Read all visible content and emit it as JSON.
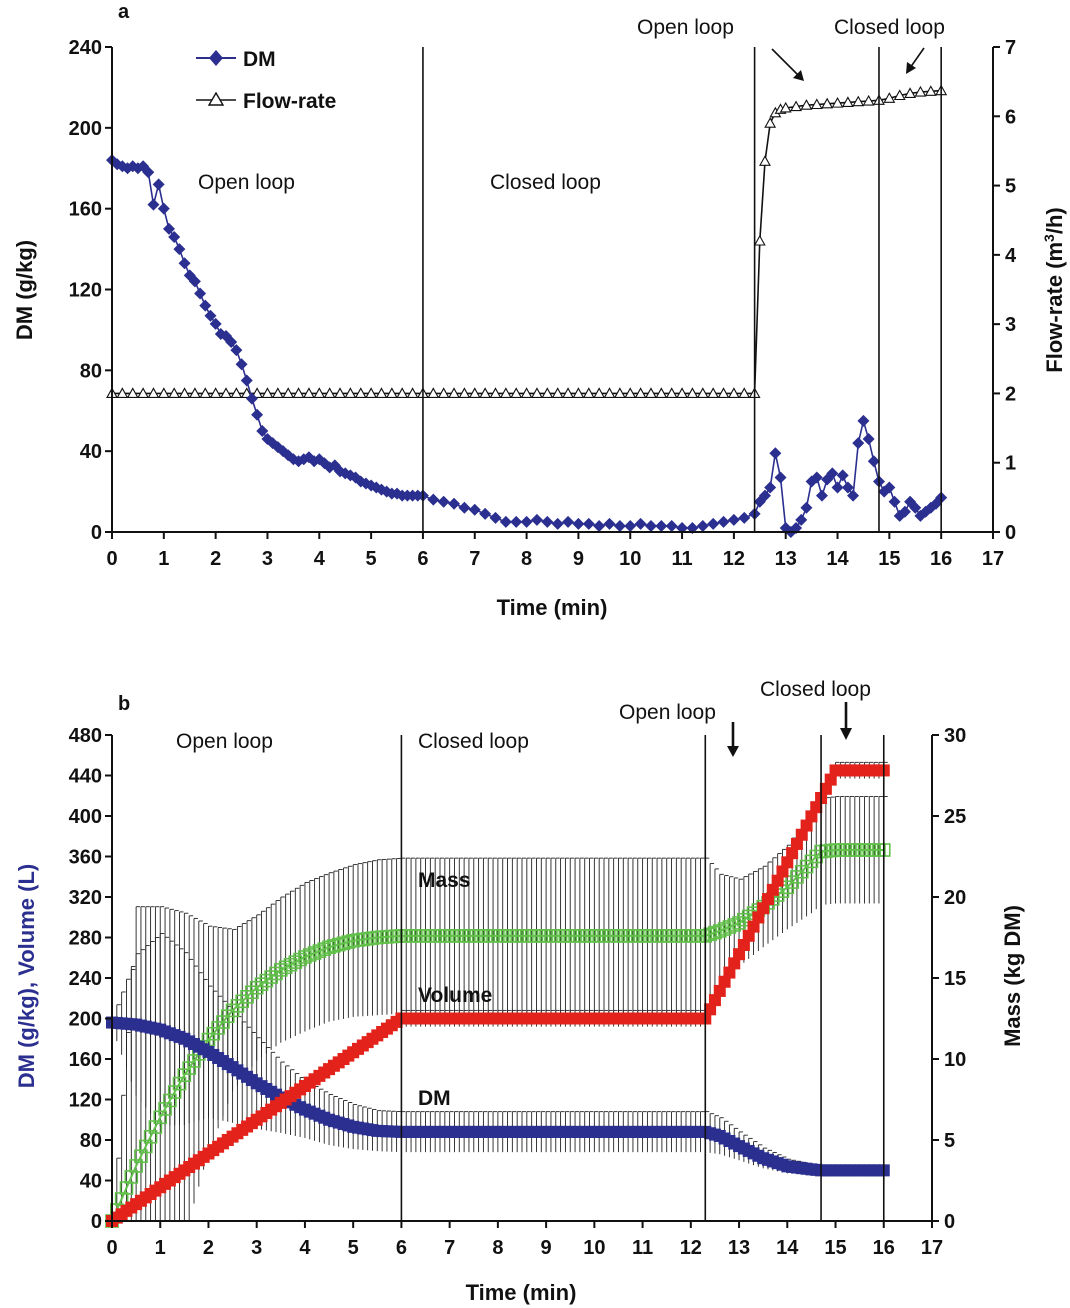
{
  "chart_data": [
    {
      "type": "line",
      "panel": "a",
      "xlabel": "Time (min)",
      "ylabel": "DM (g/kg)",
      "y2label_main": "Flow-rate (m",
      "y2label_sup": "3",
      "y2label_tail": "/h)",
      "xlim": [
        0,
        17
      ],
      "ylim": [
        0,
        240
      ],
      "y2lim": [
        0,
        7
      ],
      "xticks": [
        "0",
        "1",
        "2",
        "3",
        "4",
        "5",
        "6",
        "7",
        "8",
        "9",
        "10",
        "11",
        "12",
        "13",
        "14",
        "15",
        "16",
        "17"
      ],
      "yticks": [
        "0",
        "40",
        "80",
        "120",
        "160",
        "200",
        "240"
      ],
      "y2ticks": [
        "0",
        "1",
        "2",
        "3",
        "4",
        "5",
        "6",
        "7"
      ],
      "legend_position": "top-left",
      "vlines": [
        6.0,
        12.4,
        14.8,
        16.0
      ],
      "annotations": [
        {
          "text": "Open loop",
          "x": 2.8,
          "y": 177
        },
        {
          "text": "Closed loop",
          "x": 8.6,
          "y": 177
        },
        {
          "text": "Open loop",
          "x": 11.5,
          "y": 243
        },
        {
          "text": "Closed loop",
          "x": 15.1,
          "y": 243
        }
      ],
      "series": [
        {
          "name": "DM",
          "axis": "left",
          "color": "#2b2f8f",
          "marker": "diamond",
          "x": [
            0,
            0.1,
            0.2,
            0.3,
            0.4,
            0.5,
            0.6,
            0.7,
            0.8,
            0.9,
            1.0,
            1.1,
            1.2,
            1.3,
            1.4,
            1.5,
            1.6,
            1.7,
            1.8,
            1.9,
            2.0,
            2.1,
            2.2,
            2.3,
            2.4,
            2.5,
            2.6,
            2.7,
            2.8,
            2.9,
            3.0,
            3.1,
            3.2,
            3.3,
            3.4,
            3.5,
            3.6,
            3.7,
            3.8,
            3.9,
            4.0,
            4.1,
            4.2,
            4.3,
            4.4,
            4.5,
            4.6,
            4.7,
            4.8,
            4.9,
            5.0,
            5.1,
            5.2,
            5.3,
            5.4,
            5.5,
            5.6,
            5.7,
            5.8,
            5.9,
            6.0,
            6.2,
            6.4,
            6.6,
            6.8,
            7.0,
            7.2,
            7.4,
            7.6,
            7.8,
            8.0,
            8.2,
            8.4,
            8.6,
            8.8,
            9.0,
            9.2,
            9.4,
            9.6,
            9.8,
            10.0,
            10.2,
            10.4,
            10.6,
            10.8,
            11.0,
            11.2,
            11.4,
            11.6,
            11.8,
            12.0,
            12.2,
            12.4,
            12.5,
            12.6,
            12.7,
            12.8,
            12.9,
            13.0,
            13.1,
            13.2,
            13.3,
            13.4,
            13.5,
            13.6,
            13.7,
            13.8,
            13.9,
            14.0,
            14.1,
            14.2,
            14.3,
            14.4,
            14.5,
            14.6,
            14.7,
            14.8,
            14.9,
            15.0,
            15.1,
            15.2,
            15.3,
            15.4,
            15.5,
            15.6,
            15.7,
            15.8,
            15.9,
            16.0
          ],
          "y": [
            184,
            182,
            181,
            180,
            181,
            180,
            181,
            178,
            162,
            172,
            160,
            150,
            146,
            140,
            133,
            127,
            124,
            118,
            112,
            107,
            103,
            98,
            97,
            94,
            90,
            83,
            75,
            66,
            58,
            50,
            46,
            44,
            42,
            40,
            38,
            36,
            35,
            36,
            37,
            35,
            36,
            34,
            32,
            33,
            30,
            29,
            28,
            27,
            25,
            24,
            23,
            22,
            21,
            20,
            19,
            19,
            18,
            18,
            18,
            18,
            18,
            16,
            15,
            14,
            12,
            11,
            9,
            7,
            5,
            5,
            5,
            6,
            5,
            4,
            5,
            4,
            4,
            3,
            4,
            3,
            3,
            4,
            3,
            3,
            3,
            2,
            2,
            3,
            4,
            5,
            6,
            7,
            9,
            15,
            18,
            22,
            39,
            27,
            2,
            0,
            2,
            6,
            12,
            25,
            27,
            18,
            26,
            29,
            22,
            28,
            22,
            18,
            44,
            55,
            46,
            35,
            25,
            20,
            22,
            15,
            8,
            10,
            15,
            12,
            8,
            10,
            12,
            14,
            17
          ]
        },
        {
          "name": "Flow-rate",
          "axis": "right",
          "color": "#111111",
          "marker": "triangle-open",
          "x": [
            0,
            0.2,
            0.4,
            0.6,
            0.8,
            1.0,
            1.2,
            1.4,
            1.6,
            1.8,
            2.0,
            2.2,
            2.4,
            2.6,
            2.8,
            3.0,
            3.2,
            3.4,
            3.6,
            3.8,
            4.0,
            4.2,
            4.4,
            4.6,
            4.8,
            5.0,
            5.2,
            5.4,
            5.6,
            5.8,
            6.0,
            6.2,
            6.4,
            6.6,
            6.8,
            7.0,
            7.2,
            7.4,
            7.6,
            7.8,
            8.0,
            8.2,
            8.4,
            8.6,
            8.8,
            9.0,
            9.2,
            9.4,
            9.6,
            9.8,
            10.0,
            10.2,
            10.4,
            10.6,
            10.8,
            11.0,
            11.2,
            11.4,
            11.6,
            11.8,
            12.0,
            12.2,
            12.4,
            12.5,
            12.6,
            12.7,
            12.8,
            12.9,
            13.0,
            13.2,
            13.4,
            13.6,
            13.8,
            14.0,
            14.2,
            14.4,
            14.6,
            14.8,
            15.0,
            15.2,
            15.4,
            15.6,
            15.8,
            16.0
          ],
          "y": [
            2.0,
            2.0,
            2.0,
            2.0,
            2.0,
            2.0,
            2.0,
            2.0,
            2.0,
            2.0,
            2.0,
            2.0,
            2.0,
            2.0,
            2.0,
            2.0,
            2.0,
            2.0,
            2.0,
            2.0,
            2.0,
            2.0,
            2.0,
            2.0,
            2.0,
            2.0,
            2.0,
            2.0,
            2.0,
            2.0,
            2.0,
            2.0,
            2.0,
            2.0,
            2.0,
            2.0,
            2.0,
            2.0,
            2.0,
            2.0,
            2.0,
            2.0,
            2.0,
            2.0,
            2.0,
            2.0,
            2.0,
            2.0,
            2.0,
            2.0,
            2.0,
            2.0,
            2.0,
            2.0,
            2.0,
            2.0,
            2.0,
            2.0,
            2.0,
            2.0,
            2.0,
            2.0,
            2.0,
            4.2,
            5.35,
            5.9,
            6.05,
            6.1,
            6.12,
            6.14,
            6.16,
            6.17,
            6.18,
            6.19,
            6.2,
            6.21,
            6.22,
            6.23,
            6.26,
            6.3,
            6.33,
            6.35,
            6.36,
            6.37
          ]
        }
      ]
    },
    {
      "type": "line",
      "panel": "b",
      "xlabel": "Time (min)",
      "ylabel": "DM (g/kg), Volume (L)",
      "y2label": "Mass (kg DM)",
      "xlim": [
        0,
        17
      ],
      "ylim": [
        0,
        480
      ],
      "y2lim": [
        0,
        30
      ],
      "xticks": [
        "0",
        "1",
        "2",
        "3",
        "4",
        "5",
        "6",
        "7",
        "8",
        "9",
        "10",
        "11",
        "12",
        "13",
        "14",
        "15",
        "16",
        "17"
      ],
      "yticks": [
        "0",
        "40",
        "80",
        "120",
        "160",
        "200",
        "240",
        "280",
        "320",
        "360",
        "400",
        "440",
        "480"
      ],
      "y2ticks": [
        "0",
        "5",
        "10",
        "15",
        "20",
        "25",
        "30"
      ],
      "vlines": [
        6.0,
        12.3,
        14.7,
        16.0
      ],
      "annotations": [
        {
          "text": "Open loop",
          "x": 2.5,
          "y": 472
        },
        {
          "text": "Closed loop",
          "x": 7.7,
          "y": 472
        },
        {
          "text": "Open loop",
          "x": 11.8,
          "y": 497
        },
        {
          "text": "Closed loop",
          "x": 14.6,
          "y": 523
        }
      ],
      "series": [
        {
          "name": "DM",
          "axis": "left",
          "color": "#2b2f8f",
          "x": [
            0,
            0.5,
            1.0,
            1.5,
            2.0,
            2.5,
            3.0,
            3.5,
            4.0,
            4.5,
            5.0,
            5.5,
            6.0,
            7.0,
            8.0,
            9.0,
            10.0,
            11.0,
            12.0,
            12.3,
            12.6,
            13.0,
            13.5,
            14.0,
            14.5,
            14.7,
            15.0,
            15.5,
            16.0
          ],
          "y": [
            196,
            194,
            189,
            180,
            167,
            152,
            136,
            122,
            110,
            100,
            93,
            89,
            88,
            88,
            88,
            88,
            88,
            88,
            88,
            88,
            84,
            74,
            62,
            54,
            51,
            50,
            50,
            50,
            50
          ],
          "err": [
            5,
            70,
            95,
            85,
            65,
            55,
            45,
            35,
            28,
            25,
            22,
            20,
            20,
            20,
            20,
            20,
            20,
            20,
            20,
            20,
            18,
            14,
            10,
            7,
            5,
            5,
            5,
            5,
            5
          ]
        },
        {
          "name": "Volume",
          "axis": "left",
          "color": "#e3231b",
          "x": [
            0,
            6.0,
            12.3,
            15.0,
            16.0
          ],
          "y": [
            0,
            200,
            200,
            445,
            445
          ],
          "err": [
            0,
            8,
            8,
            8,
            8
          ]
        },
        {
          "name": "Mass",
          "axis": "right",
          "color": "#61c04a",
          "marker": "square-open",
          "x": [
            0,
            0.5,
            1.0,
            1.5,
            2.0,
            2.5,
            3.0,
            3.5,
            4.0,
            4.5,
            5.0,
            5.5,
            6.0,
            7.0,
            8.0,
            9.0,
            10.0,
            11.0,
            12.0,
            12.3,
            12.6,
            13.0,
            13.5,
            14.0,
            14.5,
            14.7,
            15.0,
            15.5,
            16.0
          ],
          "y": [
            0,
            3.4,
            6.4,
            9.0,
            11.2,
            13.0,
            14.4,
            15.5,
            16.3,
            16.9,
            17.3,
            17.5,
            17.6,
            17.6,
            17.6,
            17.6,
            17.6,
            17.6,
            17.6,
            17.6,
            17.9,
            18.4,
            19.4,
            20.6,
            22.2,
            22.8,
            22.9,
            22.9,
            22.9
          ],
          "err": [
            0,
            16,
            13,
            10,
            7,
            5,
            4.5,
            4.5,
            4.6,
            4.6,
            4.7,
            4.8,
            4.8,
            4.8,
            4.8,
            4.8,
            4.8,
            4.8,
            4.8,
            4.8,
            3.5,
            2.7,
            2.5,
            2.6,
            3.2,
            3.3,
            3.3,
            3.3,
            3.3
          ]
        }
      ]
    }
  ],
  "panel_a": {
    "letter": "a",
    "legend": {
      "dm": "DM",
      "flow": "Flow-rate"
    }
  },
  "panel_b": {
    "letter": "b",
    "labels": {
      "mass": "Mass",
      "volume": "Volume",
      "dm": "DM"
    }
  }
}
